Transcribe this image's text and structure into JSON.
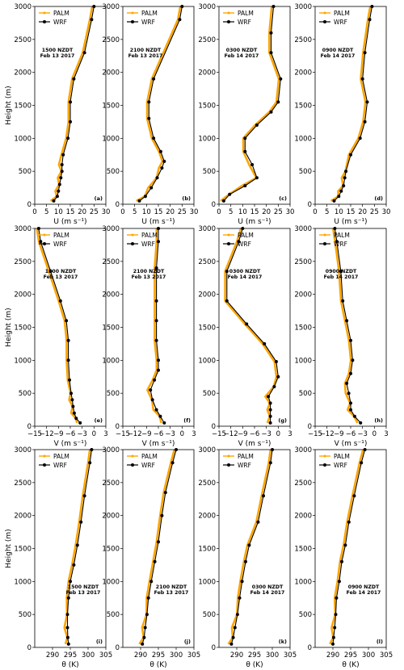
{
  "colors": {
    "palm": "#ffa500",
    "wrf": "#000000"
  },
  "legend": {
    "palm": "PALM",
    "wrf": "WRF"
  },
  "ylabel": "Height (m)",
  "rows": [
    {
      "id": "u",
      "xlabel": "U (m s⁻¹)",
      "xlim": [
        0,
        30
      ],
      "xticks": [
        "0",
        "5",
        "10",
        "15",
        "20",
        "25",
        "30"
      ],
      "xtick_values": [
        0,
        5,
        10,
        15,
        20,
        25,
        30
      ],
      "panels": [
        {
          "label": "(a)",
          "ann": [
            "1500 NZDT",
            "Feb 13 2017"
          ],
          "wrf": [
            [
              8,
              50
            ],
            [
              9.5,
              120
            ],
            [
              10,
              200
            ],
            [
              10.5,
              300
            ],
            [
              11,
              400
            ],
            [
              11.5,
              500
            ],
            [
              11.5,
              600
            ],
            [
              12,
              750
            ],
            [
              14,
              1000
            ],
            [
              15,
              1250
            ],
            [
              15,
              1550
            ],
            [
              16.5,
              1900
            ],
            [
              21,
              2300
            ],
            [
              24,
              2800
            ],
            [
              25,
              3000
            ]
          ]
        },
        {
          "label": "(b)",
          "ann": [
            "2100 NZDT",
            "Feb 13 2017"
          ],
          "wrf": [
            [
              7,
              50
            ],
            [
              9.5,
              120
            ],
            [
              12,
              250
            ],
            [
              14.5,
              400
            ],
            [
              16.5,
              550
            ],
            [
              17.5,
              650
            ],
            [
              16,
              800
            ],
            [
              13,
              1000
            ],
            [
              11,
              1300
            ],
            [
              11,
              1550
            ],
            [
              13,
              1900
            ],
            [
              24,
              2800
            ],
            [
              25,
              3000
            ]
          ]
        },
        {
          "label": "(c)",
          "ann": [
            "0300 NZDT",
            "Feb 14 2017"
          ],
          "wrf": [
            [
              2,
              50
            ],
            [
              4.5,
              150
            ],
            [
              11,
              280
            ],
            [
              16,
              400
            ],
            [
              14,
              600
            ],
            [
              11,
              800
            ],
            [
              11,
              1000
            ],
            [
              16,
              1200
            ],
            [
              22,
              1400
            ],
            [
              25,
              1550
            ],
            [
              26,
              1900
            ],
            [
              22,
              2300
            ],
            [
              22,
              2600
            ],
            [
              23,
              3000
            ]
          ]
        },
        {
          "label": "(d)",
          "ann": [
            "0900 NZDT",
            "Feb 14 2017"
          ],
          "wrf": [
            [
              8,
              50
            ],
            [
              10,
              120
            ],
            [
              11,
              200
            ],
            [
              12,
              280
            ],
            [
              12.5,
              400
            ],
            [
              13,
              500
            ],
            [
              15,
              750
            ],
            [
              19,
              1000
            ],
            [
              21,
              1250
            ],
            [
              22,
              1550
            ],
            [
              20,
              1900
            ],
            [
              21,
              2300
            ],
            [
              23,
              2800
            ],
            [
              24,
              3000
            ]
          ]
        }
      ]
    },
    {
      "id": "v",
      "xlabel": "V (m s⁻¹)",
      "xlim": [
        -15,
        3
      ],
      "xticks": [
        "−15",
        "−12",
        "−9",
        "−6",
        "−3",
        "0",
        "3"
      ],
      "xtick_values": [
        -15,
        -12,
        -9,
        -6,
        -3,
        0,
        3
      ],
      "panels": [
        {
          "label": "(e)",
          "ann": [
            "1500 NZDT",
            "Feb 13 2017"
          ],
          "wrf": [
            [
              -3.5,
              50
            ],
            [
              -4.5,
              120
            ],
            [
              -5,
              200
            ],
            [
              -5.3,
              300
            ],
            [
              -5.5,
              400
            ],
            [
              -5.8,
              500
            ],
            [
              -6.2,
              700
            ],
            [
              -6.5,
              1000
            ],
            [
              -6.5,
              1300
            ],
            [
              -7,
              1600
            ],
            [
              -8.5,
              1900
            ],
            [
              -11,
              2350
            ],
            [
              -13.5,
              2800
            ],
            [
              -14,
              3000
            ]
          ]
        },
        {
          "label": "(f)",
          "ann": [
            "2100 NZDT",
            "Feb 13 2017"
          ],
          "wrf": [
            [
              -4.5,
              50
            ],
            [
              -5.5,
              150
            ],
            [
              -6.5,
              250
            ],
            [
              -7.5,
              400
            ],
            [
              -8,
              550
            ],
            [
              -7,
              700
            ],
            [
              -6,
              850
            ],
            [
              -6,
              1000
            ],
            [
              -6.5,
              1300
            ],
            [
              -6.5,
              1600
            ],
            [
              -6.5,
              1900
            ],
            [
              -6.5,
              2400
            ],
            [
              -6,
              2800
            ],
            [
              -6,
              3000
            ]
          ]
        },
        {
          "label": "(g)",
          "ann": [
            "0300 NZDT",
            "Feb 14 2017"
          ],
          "wrf": [
            [
              -2,
              50
            ],
            [
              -2,
              150
            ],
            [
              -2,
              250
            ],
            [
              -2,
              350
            ],
            [
              -2.5,
              450
            ],
            [
              -1,
              600
            ],
            [
              0,
              750
            ],
            [
              -0.5,
              980
            ],
            [
              -3.5,
              1250
            ],
            [
              -8,
              1550
            ],
            [
              -13,
              1900
            ],
            [
              -13,
              2350
            ],
            [
              -10,
              2800
            ],
            [
              -9,
              3000
            ]
          ]
        },
        {
          "label": "(h)",
          "ann": [
            "0900 NZDT",
            "Feb 14 2017"
          ],
          "wrf": [
            [
              -3.5,
              50
            ],
            [
              -5,
              150
            ],
            [
              -6,
              250
            ],
            [
              -6,
              350
            ],
            [
              -6.5,
              500
            ],
            [
              -7,
              650
            ],
            [
              -6,
              800
            ],
            [
              -5.5,
              1000
            ],
            [
              -6,
              1300
            ],
            [
              -7,
              1600
            ],
            [
              -8,
              1900
            ],
            [
              -8.5,
              2350
            ],
            [
              -9.5,
              2800
            ],
            [
              -10,
              3000
            ]
          ]
        }
      ]
    },
    {
      "id": "theta",
      "xlabel": "θ (K)",
      "xlim": [
        285,
        305
      ],
      "xticks": [
        "290",
        "295",
        "300",
        "305"
      ],
      "xtick_values": [
        290,
        295,
        300,
        305
      ],
      "panels": [
        {
          "label": "(i)",
          "ann": [
            "1500 NZDT",
            "Feb 13 2017"
          ],
          "wrf": [
            [
              294.5,
              50
            ],
            [
              294.3,
              150
            ],
            [
              294.2,
              300
            ],
            [
              294.2,
              500
            ],
            [
              294.5,
              750
            ],
            [
              295,
              1000
            ],
            [
              296,
              1250
            ],
            [
              297,
              1550
            ],
            [
              298,
              1900
            ],
            [
              299,
              2300
            ],
            [
              300.5,
              2800
            ],
            [
              301,
              3000
            ]
          ]
        },
        {
          "label": "(j)",
          "ann": [
            "2100 NZDT",
            "Feb 13 2017"
          ],
          "wrf": [
            [
              290.5,
              50
            ],
            [
              291,
              150
            ],
            [
              291.3,
              300
            ],
            [
              291.8,
              500
            ],
            [
              292.2,
              750
            ],
            [
              293,
              1000
            ],
            [
              294,
              1300
            ],
            [
              295,
              1600
            ],
            [
              296,
              2000
            ],
            [
              297,
              2350
            ],
            [
              299,
              2800
            ],
            [
              300,
              3000
            ]
          ]
        },
        {
          "label": "(k)",
          "ann": [
            "0300 NZDT",
            "Feb 14 2017"
          ],
          "wrf": [
            [
              288.5,
              50
            ],
            [
              289,
              150
            ],
            [
              289.5,
              300
            ],
            [
              290.2,
              500
            ],
            [
              290.8,
              750
            ],
            [
              291.5,
              1000
            ],
            [
              292.5,
              1300
            ],
            [
              293.5,
              1550
            ],
            [
              296,
              1900
            ],
            [
              297.5,
              2300
            ],
            [
              299.5,
              2800
            ],
            [
              300,
              3000
            ]
          ]
        },
        {
          "label": "(l)",
          "ann": [
            "0900 NZDT",
            "Feb 14 2017"
          ],
          "wrf": [
            [
              290,
              50
            ],
            [
              290.2,
              150
            ],
            [
              290.5,
              300
            ],
            [
              290.8,
              500
            ],
            [
              291,
              750
            ],
            [
              291.8,
              1000
            ],
            [
              292.5,
              1300
            ],
            [
              293.5,
              1550
            ],
            [
              294.5,
              1900
            ],
            [
              296,
              2300
            ],
            [
              298,
              2800
            ],
            [
              299,
              3000
            ]
          ]
        }
      ]
    }
  ],
  "yticks": [
    0,
    500,
    1000,
    1500,
    2000,
    2500,
    3000
  ],
  "ylim": [
    0,
    3000
  ]
}
